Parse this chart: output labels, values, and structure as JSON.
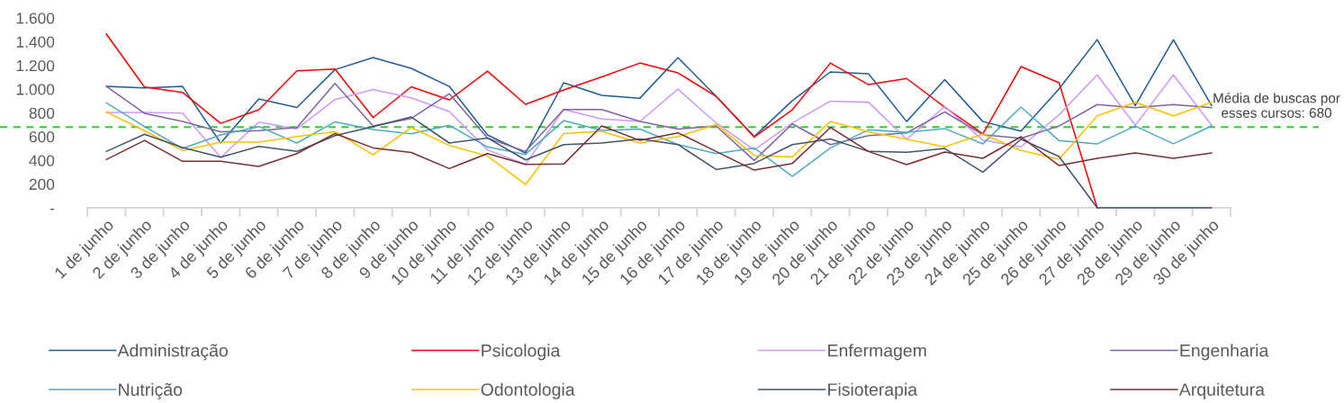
{
  "chart_data": {
    "type": "line",
    "categories": [
      "1 de junho",
      "2 de junho",
      "3 de junho",
      "4 de junho",
      "5 de junho",
      "6 de junho",
      "7 de junho",
      "8 de junho",
      "9 de junho",
      "10 de junho",
      "11 de junho",
      "12 de junho",
      "13 de junho",
      "14 de junho",
      "15 de junho",
      "16 de junho",
      "17 de junho",
      "18 de junho",
      "19 de junho",
      "20 de junho",
      "21 de junho",
      "22 de junho",
      "23 de junho",
      "24 de junho",
      "25 de junho",
      "26 de junho",
      "27 de junho",
      "28 de junho",
      "29 de junho",
      "30 de junho"
    ],
    "series": [
      {
        "name": "Administração",
        "color": "#1f5c99",
        "values": [
          1023,
          1011,
          1023,
          546,
          917,
          846,
          1165,
          1266,
          1175,
          1023,
          614,
          462,
          1054,
          948,
          924,
          1266,
          940,
          600,
          903,
          1145,
          1130,
          727,
          1080,
          727,
          647,
          1003,
          1417,
          862,
          1417,
          862
        ]
      },
      {
        "name": "Psicologia",
        "color": "#ff0000",
        "values": [
          1465,
          1018,
          973,
          712,
          826,
          1155,
          1170,
          760,
          1020,
          910,
          1152,
          872,
          993,
          1104,
          1220,
          1137,
          940,
          597,
          826,
          1220,
          1038,
          1090,
          849,
          622,
          1190,
          1054,
          0,
          null,
          null,
          null
        ]
      },
      {
        "name": "Enfermagem",
        "color": "#cc99ff",
        "values": [
          804,
          804,
          798,
          425,
          722,
          666,
          912,
          998,
          927,
          811,
          488,
          366,
          829,
          748,
          728,
          1000,
          715,
          488,
          715,
          899,
          890,
          578,
          855,
          570,
          514,
          784,
          1120,
          696,
          1120,
          696
        ]
      },
      {
        "name": "Engenharia",
        "color": "#8064a2",
        "values": [
          1023,
          797,
          728,
          641,
          650,
          677,
          1048,
          690,
          753,
          962,
          588,
          475,
          829,
          829,
          728,
          664,
          690,
          399,
          707,
          533,
          609,
          631,
          808,
          616,
          586,
          689,
          870,
          844,
          870,
          844
        ]
      },
      {
        "name": "Nutrição",
        "color": "#4bacc6",
        "values": [
          885,
          685,
          500,
          614,
          685,
          546,
          725,
          660,
          624,
          695,
          513,
          450,
          735,
          652,
          664,
          533,
          457,
          505,
          265,
          505,
          657,
          636,
          668,
          539,
          849,
          566,
          539,
          689,
          539,
          689
        ]
      },
      {
        "name": "Odontologia",
        "color": "#ffc000",
        "values": [
          808,
          650,
          482,
          553,
          553,
          601,
          641,
          447,
          677,
          526,
          437,
          197,
          626,
          644,
          546,
          601,
          702,
          442,
          429,
          728,
          641,
          578,
          514,
          622,
          483,
          410,
          776,
          889,
          776,
          889
        ]
      },
      {
        "name": "Fisioterapia",
        "color": "#44546a",
        "values": [
          475,
          620,
          508,
          427,
          518,
          475,
          609,
          685,
          765,
          546,
          588,
          404,
          533,
          546,
          580,
          533,
          323,
          374,
          533,
          580,
          475,
          468,
          500,
          300,
          578,
          432,
          0,
          0,
          0,
          0
        ]
      },
      {
        "name": "Arquitetura",
        "color": "#7b2e2e",
        "values": [
          407,
          568,
          392,
          392,
          349,
          457,
          626,
          505,
          466,
          331,
          457,
          366,
          369,
          690,
          568,
          632,
          475,
          318,
          374,
          677,
          475,
          364,
          470,
          417,
          599,
          356,
          417,
          462,
          417,
          462
        ]
      }
    ],
    "ylim": [
      0,
      1600
    ],
    "yticks": [
      {
        "value": 0,
        "label": "-"
      },
      {
        "value": 200,
        "label": "200"
      },
      {
        "value": 400,
        "label": "400"
      },
      {
        "value": 600,
        "label": "600"
      },
      {
        "value": 800,
        "label": "800"
      },
      {
        "value": 1000,
        "label": "1.000"
      },
      {
        "value": 1200,
        "label": "1.200"
      },
      {
        "value": 1400,
        "label": "1.400"
      },
      {
        "value": 1600,
        "label": "1.600"
      }
    ],
    "ref_lines": [
      {
        "axis": "y",
        "value": 680,
        "label": "Média de buscas por esses cursos: 680",
        "color": "#33cc33",
        "line_style": "dashed"
      }
    ],
    "grid": false,
    "legend": "bottom",
    "marker": "none",
    "line_style": "solid"
  }
}
